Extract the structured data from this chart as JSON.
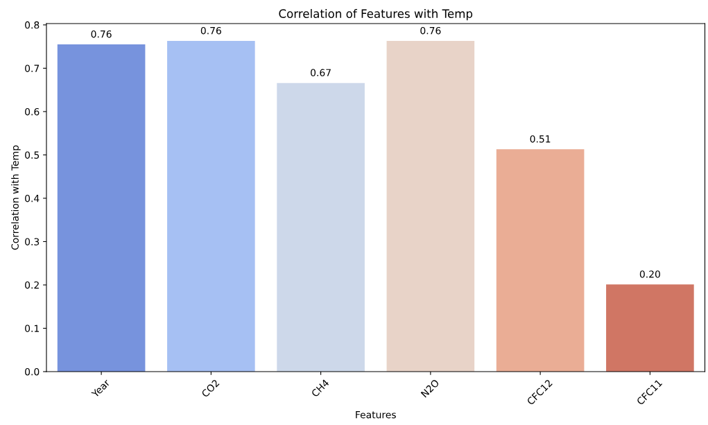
{
  "chart_data": {
    "type": "bar",
    "title": "Correlation of Features with Temp",
    "xlabel": "Features",
    "ylabel": "Correlation with Temp",
    "categories": [
      "Year",
      "CO2",
      "CH4",
      "N2O",
      "CFC12",
      "CFC11"
    ],
    "values": [
      0.755,
      0.763,
      0.666,
      0.763,
      0.513,
      0.201
    ],
    "value_labels": [
      "0.76",
      "0.76",
      "0.67",
      "0.76",
      "0.51",
      "0.20"
    ],
    "colors": [
      "#7793dd",
      "#a6c0f3",
      "#cdd8ea",
      "#e8d3c8",
      "#eaad95",
      "#d07664"
    ],
    "ylim": [
      0,
      0.803
    ],
    "yticks": [
      {
        "value": 0,
        "label": "0.0"
      },
      0.1,
      0.2,
      0.3,
      0.4,
      0.5,
      0.6,
      0.7,
      0.8
    ],
    "grid": false
  }
}
